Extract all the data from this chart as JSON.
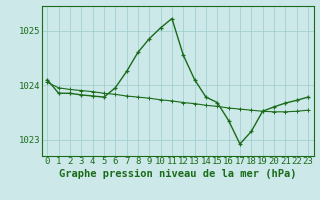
{
  "title": "Graphe pression niveau de la mer (hPa)",
  "bg_color": "#cce8e8",
  "grid_color": "#99cccc",
  "line_color": "#1a6b1a",
  "x_labels": [
    "0",
    "1",
    "2",
    "3",
    "4",
    "5",
    "6",
    "7",
    "8",
    "9",
    "10",
    "11",
    "12",
    "13",
    "14",
    "15",
    "16",
    "17",
    "18",
    "19",
    "20",
    "21",
    "22",
    "23"
  ],
  "main_series": [
    1024.1,
    1023.85,
    1023.85,
    1023.82,
    1023.8,
    1023.78,
    1023.95,
    1024.25,
    1024.6,
    1024.85,
    1025.05,
    1025.22,
    1024.55,
    1024.1,
    1023.78,
    1023.68,
    1023.35,
    1022.92,
    1023.15,
    1023.52,
    1023.6,
    1023.67,
    1023.72,
    1023.78
  ],
  "smooth_series": [
    1024.05,
    1023.95,
    1023.92,
    1023.9,
    1023.88,
    1023.85,
    1023.83,
    1023.8,
    1023.78,
    1023.76,
    1023.73,
    1023.71,
    1023.68,
    1023.66,
    1023.63,
    1023.61,
    1023.58,
    1023.56,
    1023.54,
    1023.52,
    1023.51,
    1023.51,
    1023.52,
    1023.54
  ],
  "ylim": [
    1022.7,
    1025.45
  ],
  "yticks": [
    1023,
    1024,
    1025
  ],
  "title_fontsize": 7.5,
  "tick_fontsize": 6.5
}
